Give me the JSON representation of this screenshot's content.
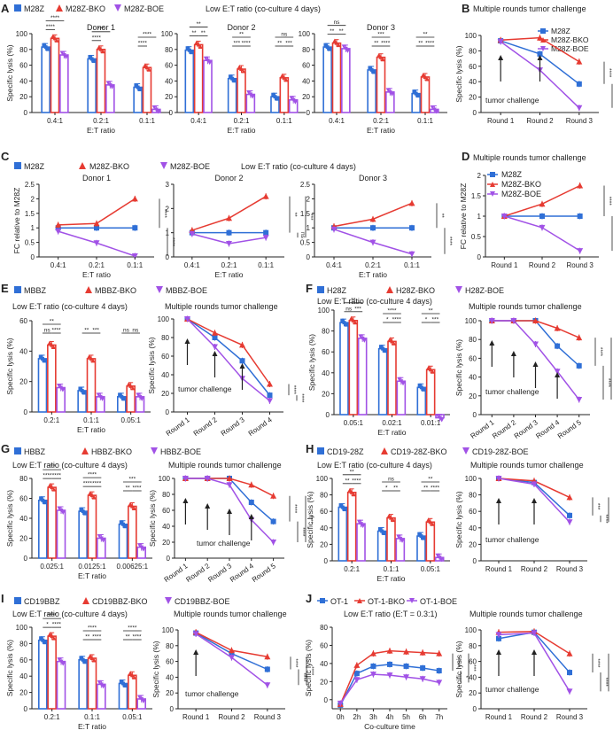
{
  "colors": {
    "m28z": "#2f6fd6",
    "bko": "#e63b32",
    "boe": "#a152e6",
    "axis": "#222222"
  },
  "panels": [
    {
      "letter": "A",
      "legend": [
        "M28Z",
        "M28Z-BKO",
        "M28Z-BOE"
      ],
      "caption": "Low E:T ratio (co-culture 4 days)"
    },
    {
      "letter": "B",
      "title": "Multiple rounds tumor challenge",
      "legend": [
        "M28Z",
        "M28Z-BKO",
        "M28Z-BOE"
      ]
    },
    {
      "letter": "C",
      "legend": [
        "M28Z",
        "M28Z-BKO",
        "M28Z-BOE"
      ],
      "caption": "Low E:T ratio (co-culture 4 days)"
    },
    {
      "letter": "D",
      "title": "Multiple rounds tumor challenge",
      "legend": [
        "M28Z",
        "M28Z-BKO",
        "M28Z-BOE"
      ]
    },
    {
      "letter": "E",
      "legend": [
        "MBBZ",
        "MBBZ-BKO",
        "MBBZ-BOE"
      ],
      "caption": "Low E:T ratio (co-culture 4 days)",
      "title": "Multiple rounds tumor challenge"
    },
    {
      "letter": "F",
      "legend": [
        "H28Z",
        "H28Z-BKO",
        "H28Z-BOE"
      ],
      "caption": "Low E:T ratio (co-culture 4 days)",
      "title": "Multiple rounds tumor challenge"
    },
    {
      "letter": "G",
      "legend": [
        "HBBZ",
        "HBBZ-BKO",
        "HBBZ-BOE"
      ],
      "caption": "Low E:T ratio (co-culture 4 days)",
      "title": "Multiple rounds tumor challenge"
    },
    {
      "letter": "H",
      "legend": [
        "CD19-28Z",
        "CD19-28Z-BKO",
        "CD19-28Z-BOE"
      ],
      "caption": "Low E:T ratio (co-culture 4 days)",
      "title": "Multiple rounds tumor challenge"
    },
    {
      "letter": "I",
      "legend": [
        "CD19BBZ",
        "CD19BBZ-BKO",
        "CD19BBZ-BOE"
      ],
      "caption": "Low E:T ratio (co-culture 4 days)",
      "title": "Multiple rounds tumor challenge"
    },
    {
      "letter": "J",
      "legend": [
        "OT-1",
        "OT-1-BKO",
        "OT-1-BOE"
      ],
      "caption": "Low E:T ratio (E:T = 0.3:1)",
      "title": "Multiple rounds tumor challenge"
    }
  ],
  "labels": {
    "lysis": "Specific lysis (%)",
    "fc": "FC relative to M28Z",
    "et": "E:T ratio",
    "time": "Co-culture time",
    "challenge": "tumor challenge"
  },
  "chart_data": [
    {
      "id": "A1",
      "type": "bar",
      "title": "Donor 1",
      "categories": [
        "0.4:1",
        "0.2:1",
        "0.1:1"
      ],
      "ylim": [
        0,
        100
      ],
      "yticks": [
        0,
        20,
        40,
        60,
        80,
        100
      ],
      "ylabel": "Specific lysis (%)",
      "xlabel": "E:T ratio",
      "series": [
        {
          "values": [
            83,
            68,
            32
          ]
        },
        {
          "values": [
            94,
            80,
            57
          ]
        },
        {
          "values": [
            73,
            35,
            4
          ]
        }
      ],
      "sig": [
        [
          "****",
          "***",
          "****"
        ],
        [
          "****",
          "****",
          "****"
        ]
      ]
    },
    {
      "id": "A2",
      "type": "bar",
      "title": "Donor 2",
      "categories": [
        "0.4:1",
        "0.2:1",
        "0.1:1"
      ],
      "ylim": [
        0,
        100
      ],
      "yticks": [
        0,
        20,
        40,
        60,
        80,
        100
      ],
      "xlabel": "E:T ratio",
      "series": [
        {
          "values": [
            79,
            43,
            20
          ]
        },
        {
          "values": [
            86,
            55,
            44
          ]
        },
        {
          "values": [
            66,
            23,
            16
          ]
        }
      ],
      "sig": [
        [
          "**",
          "**",
          "ns"
        ],
        [
          "**",
          "***",
          "**"
        ],
        [
          "**",
          "****",
          "***"
        ]
      ]
    },
    {
      "id": "A3",
      "type": "bar",
      "title": "Donor 3",
      "categories": [
        "0.4:1",
        "0.2:1",
        "0.1:1"
      ],
      "ylim": [
        0,
        100
      ],
      "yticks": [
        0,
        20,
        40,
        60,
        80,
        100
      ],
      "xlabel": "E:T ratio",
      "series": [
        {
          "values": [
            83,
            54,
            24
          ]
        },
        {
          "values": [
            88,
            70,
            45
          ]
        },
        {
          "values": [
            81,
            26,
            4
          ]
        }
      ],
      "sig": [
        [
          "ns",
          "***",
          "**"
        ],
        [
          "**",
          "**",
          "**"
        ],
        [
          "**",
          "****",
          "****"
        ]
      ]
    },
    {
      "id": "B",
      "type": "line",
      "categories": [
        "Round 1",
        "Round 2",
        "Round 3"
      ],
      "ylim": [
        0,
        100
      ],
      "yticks": [
        0,
        20,
        40,
        60,
        80,
        100
      ],
      "ylabel": "Specific lysis (%)",
      "series": [
        {
          "values": [
            93,
            76,
            37
          ]
        },
        {
          "values": [
            94,
            97,
            66
          ]
        },
        {
          "values": [
            92,
            55,
            6
          ]
        }
      ],
      "sig": [
        "****",
        "****",
        "****"
      ]
    },
    {
      "id": "C1",
      "type": "line",
      "title": "Donor 1",
      "categories": [
        "0.4:1",
        "0.2:1",
        "0.1:1"
      ],
      "ylim": [
        0,
        2.5
      ],
      "yticks": [
        0,
        0.5,
        1,
        1.5,
        2,
        2.5
      ],
      "ylabel": "FC relative to M28Z",
      "xlabel": "E:T ratio",
      "series": [
        {
          "values": [
            1,
            1,
            1
          ]
        },
        {
          "values": [
            1.1,
            1.15,
            2.0
          ]
        },
        {
          "values": [
            0.88,
            0.48,
            0.03
          ]
        }
      ],
      "sig": [
        "****",
        "****"
      ]
    },
    {
      "id": "C2",
      "type": "line",
      "title": "Donor 2",
      "categories": [
        "0.4:1",
        "0.2:1",
        "0.1:1"
      ],
      "ylim": [
        0,
        3
      ],
      "yticks": [
        0,
        1,
        2,
        3
      ],
      "xlabel": "E:T ratio",
      "series": [
        {
          "values": [
            1,
            1,
            1
          ]
        },
        {
          "values": [
            1.1,
            1.6,
            2.5
          ]
        },
        {
          "values": [
            0.95,
            0.55,
            0.8
          ]
        }
      ],
      "sig": [
        "**",
        "ns",
        "***"
      ]
    },
    {
      "id": "C3",
      "type": "line",
      "title": "Donor 3",
      "categories": [
        "0.4:1",
        "0.2:1",
        "0.1:1"
      ],
      "ylim": [
        0,
        2.5
      ],
      "yticks": [
        0,
        0.5,
        1,
        1.5,
        2,
        2.5
      ],
      "xlabel": "E:T ratio",
      "series": [
        {
          "values": [
            1,
            1,
            1
          ]
        },
        {
          "values": [
            1.05,
            1.3,
            1.85
          ]
        },
        {
          "values": [
            0.95,
            0.5,
            0.1
          ]
        }
      ],
      "sig": [
        "**",
        "****"
      ]
    },
    {
      "id": "D",
      "type": "line",
      "categories": [
        "Round 1",
        "Round 2",
        "Round 3"
      ],
      "ylim": [
        0,
        2
      ],
      "yticks": [
        0,
        0.5,
        1.0,
        1.5,
        2.0
      ],
      "ylabel": "FC relative to M28Z",
      "series": [
        {
          "values": [
            1,
            1,
            1
          ]
        },
        {
          "values": [
            1.0,
            1.3,
            1.75
          ]
        },
        {
          "values": [
            1.0,
            0.72,
            0.15
          ]
        }
      ],
      "sig": [
        "****",
        "****"
      ]
    },
    {
      "id": "E1",
      "type": "bar",
      "categories": [
        "0.2:1",
        "0.1:1",
        "0.05:1"
      ],
      "ylim": [
        0,
        60
      ],
      "yticks": [
        0,
        20,
        40,
        60
      ],
      "ylabel": "Specific lysis (%)",
      "xlabel": "E:T ratio",
      "series": [
        {
          "values": [
            35,
            14,
            10
          ]
        },
        {
          "values": [
            44,
            35,
            17
          ]
        },
        {
          "values": [
            16,
            10,
            10
          ]
        }
      ],
      "sig": [
        [
          "**",
          "",
          ""
        ],
        [
          "ns",
          "**",
          "ns"
        ],
        [
          "****",
          "***",
          "ns"
        ]
      ]
    },
    {
      "id": "E2",
      "type": "line",
      "categories": [
        "Round 1",
        "Round 2",
        "Round 3",
        "Round 4"
      ],
      "ylim": [
        0,
        100
      ],
      "yticks": [
        0,
        20,
        40,
        60,
        80,
        100
      ],
      "ylabel": "Specific lysis (%)",
      "series": [
        {
          "values": [
            100,
            80,
            55,
            18
          ]
        },
        {
          "values": [
            100,
            85,
            72,
            30
          ]
        },
        {
          "values": [
            100,
            70,
            36,
            12
          ]
        }
      ],
      "sig": [
        "****",
        "****"
      ]
    },
    {
      "id": "F1",
      "type": "bar",
      "categories": [
        "0.05:1",
        "0.02:1",
        "0.01:1"
      ],
      "ylim": [
        0,
        100
      ],
      "yticks": [
        0,
        20,
        40,
        60,
        80,
        100
      ],
      "ylabel": "Specific lysis (%)",
      "xlabel": "E:T ratio",
      "series": [
        {
          "values": [
            88,
            63,
            26
          ]
        },
        {
          "values": [
            90,
            70,
            43
          ]
        },
        {
          "values": [
            73,
            32,
            -3
          ]
        }
      ],
      "sig": [
        [
          "**",
          "****",
          "**"
        ],
        [
          "ns",
          "*",
          "*"
        ],
        [
          "***",
          "****",
          "***"
        ]
      ]
    },
    {
      "id": "F2",
      "type": "line",
      "categories": [
        "Round 1",
        "Round 2",
        "Round 3",
        "Round 4",
        "Round 5"
      ],
      "ylim": [
        0,
        100
      ],
      "yticks": [
        0,
        20,
        40,
        60,
        80,
        100
      ],
      "ylabel": "Specific lysis (%)",
      "series": [
        {
          "values": [
            100,
            100,
            100,
            73,
            52
          ]
        },
        {
          "values": [
            100,
            100,
            100,
            92,
            82
          ]
        },
        {
          "values": [
            100,
            100,
            75,
            46,
            16
          ]
        }
      ],
      "sig": [
        "****",
        "****",
        "****"
      ]
    },
    {
      "id": "G1",
      "type": "bar",
      "categories": [
        "0.025:1",
        "0.0125:1",
        "0.00625:1"
      ],
      "ylim": [
        0,
        80
      ],
      "yticks": [
        0,
        20,
        40,
        60,
        80
      ],
      "ylabel": "Specific lysis (%)",
      "xlabel": "E:T ratio",
      "series": [
        {
          "values": [
            58,
            47,
            34
          ]
        },
        {
          "values": [
            71,
            63,
            52
          ]
        },
        {
          "values": [
            48,
            20,
            11
          ]
        }
      ],
      "sig": [
        [
          "***",
          "****",
          "***"
        ],
        [
          "****",
          "****",
          "**"
        ],
        [
          "****",
          "****",
          "****"
        ]
      ]
    },
    {
      "id": "G2",
      "type": "line",
      "categories": [
        "Round 1",
        "Round 2",
        "Round 3",
        "Round 4",
        "Round 5"
      ],
      "ylim": [
        0,
        100
      ],
      "yticks": [
        0,
        20,
        40,
        60,
        80,
        100
      ],
      "ylabel": "Specific lysis (%)",
      "series": [
        {
          "values": [
            100,
            100,
            100,
            70,
            46
          ]
        },
        {
          "values": [
            100,
            100,
            100,
            92,
            78
          ]
        },
        {
          "values": [
            100,
            100,
            92,
            48,
            20
          ]
        }
      ],
      "sig": [
        "****",
        "****",
        "****"
      ]
    },
    {
      "id": "H1",
      "type": "bar",
      "categories": [
        "0.2:1",
        "0.1:1",
        "0.05:1"
      ],
      "ylim": [
        0,
        100
      ],
      "yticks": [
        0,
        20,
        40,
        60,
        80,
        100
      ],
      "ylabel": "Specific lysis (%)",
      "xlabel": "E:T ratio",
      "series": [
        {
          "values": [
            65,
            36,
            30
          ]
        },
        {
          "values": [
            83,
            52,
            47
          ]
        },
        {
          "values": [
            45,
            27,
            4
          ]
        }
      ],
      "sig": [
        [
          "**",
          "ns",
          "**"
        ],
        [
          "**",
          "*",
          "**"
        ],
        [
          "****",
          "**",
          "****"
        ]
      ]
    },
    {
      "id": "H2",
      "type": "line",
      "categories": [
        "Round 1",
        "Round 2",
        "Round 3"
      ],
      "ylim": [
        0,
        100
      ],
      "yticks": [
        0,
        20,
        40,
        60,
        80,
        100
      ],
      "ylabel": "Specific lysis (%)",
      "series": [
        {
          "values": [
            100,
            95,
            55
          ]
        },
        {
          "values": [
            100,
            97,
            77
          ]
        },
        {
          "values": [
            100,
            93,
            47
          ]
        }
      ],
      "sig": [
        "***",
        "****",
        "****"
      ]
    },
    {
      "id": "I1",
      "type": "bar",
      "categories": [
        "0.2:1",
        "0.1:1",
        "0.05:1"
      ],
      "ylim": [
        0,
        100
      ],
      "yticks": [
        0,
        20,
        40,
        60,
        80,
        100
      ],
      "ylabel": "Specific lysis (%)",
      "xlabel": "E:T ratio",
      "series": [
        {
          "values": [
            84,
            60,
            31
          ]
        },
        {
          "values": [
            89,
            62,
            41
          ]
        },
        {
          "values": [
            58,
            30,
            12
          ]
        }
      ],
      "sig": [
        [
          "****",
          "****",
          "****"
        ],
        [
          "*",
          "**",
          "**"
        ],
        [
          "****",
          "****",
          "****"
        ]
      ]
    },
    {
      "id": "I2",
      "type": "line",
      "categories": [
        "Round 1",
        "Round 2",
        "Round 3"
      ],
      "ylim": [
        0,
        100
      ],
      "yticks": [
        0,
        20,
        40,
        60,
        80,
        100
      ],
      "ylabel": "Specific lysis (%)",
      "series": [
        {
          "values": [
            96,
            70,
            50
          ]
        },
        {
          "values": [
            97,
            74,
            66
          ]
        },
        {
          "values": [
            95,
            65,
            30
          ]
        }
      ],
      "sig": [
        "****",
        "****",
        "****"
      ]
    },
    {
      "id": "J1",
      "type": "line",
      "categories": [
        "0h",
        "2h",
        "3h",
        "4h",
        "5h",
        "6h",
        "7h"
      ],
      "ylim": [
        -10,
        80
      ],
      "yticks": [
        0,
        20,
        40,
        60,
        80
      ],
      "ylabel": "Specific lysis (%)",
      "xlabel": "Co-culture time",
      "series": [
        {
          "values": [
            -6,
            29,
            37,
            39,
            37,
            35,
            32
          ]
        },
        {
          "values": [
            -5,
            38,
            51,
            54,
            53,
            52,
            51
          ]
        },
        {
          "values": [
            -4,
            22,
            28,
            27,
            25,
            23,
            19
          ]
        }
      ],
      "sig": [
        "****",
        "*",
        "***"
      ]
    },
    {
      "id": "J2",
      "type": "line",
      "categories": [
        "Round 1",
        "Round 2",
        "Round 3"
      ],
      "ylim": [
        0,
        100
      ],
      "yticks": [
        0,
        20,
        40,
        60,
        80,
        100
      ],
      "ylabel": "Specific lysis (%)",
      "series": [
        {
          "values": [
            89,
            97,
            46
          ]
        },
        {
          "values": [
            97,
            98,
            70
          ]
        },
        {
          "values": [
            94,
            96,
            22
          ]
        }
      ],
      "sig": [
        "****",
        "****",
        "****"
      ]
    }
  ]
}
